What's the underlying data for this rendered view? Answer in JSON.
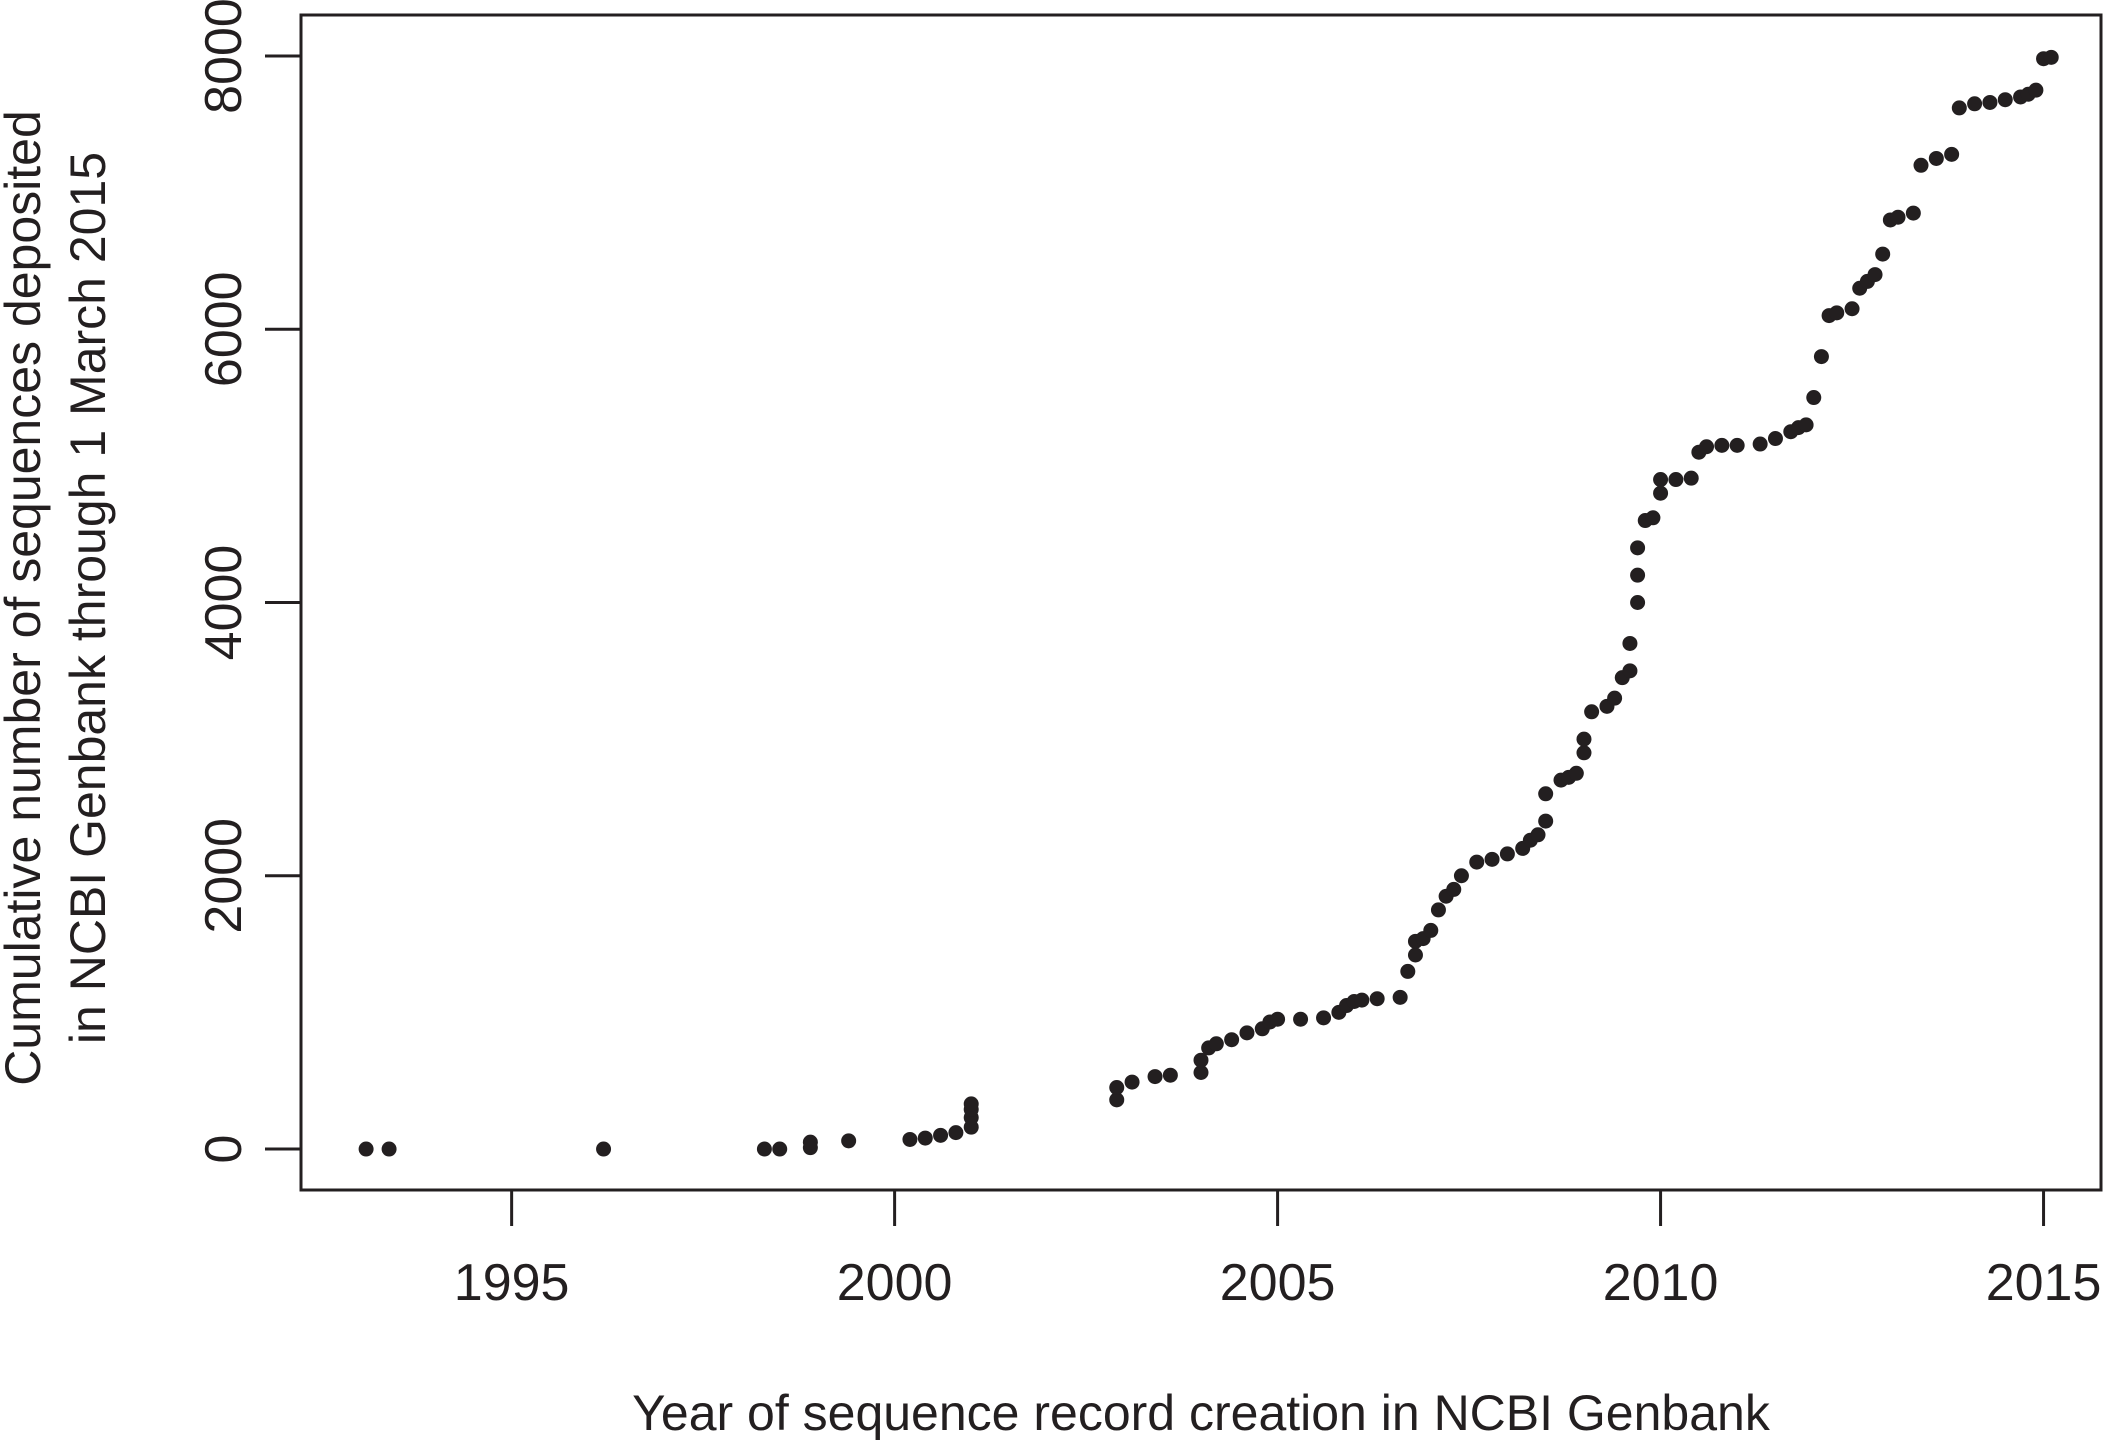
{
  "chart_data": {
    "type": "scatter",
    "title": "",
    "xlabel": "Year of sequence record creation in NCBI Genbank",
    "ylabel_lines": [
      "Cumulative number of sequences deposited",
      "in NCBI Genbank through 1 March 2015"
    ],
    "xlim": [
      1992.25,
      2015.75
    ],
    "ylim": [
      -300,
      8300
    ],
    "x_ticks": [
      1995,
      2000,
      2005,
      2010,
      2015
    ],
    "x_tick_labels": [
      "1995",
      "2000",
      "2005",
      "2010",
      "2015"
    ],
    "y_ticks": [
      0,
      2000,
      4000,
      6000,
      8000
    ],
    "y_tick_labels": [
      "0",
      "2000",
      "4000",
      "6000",
      "8000"
    ],
    "grid": false,
    "point_color": "#231f20",
    "series": [
      {
        "x": [
          1993.1,
          1993.4,
          1996.2,
          1998.3,
          1998.5,
          1998.9,
          1998.9,
          1999.4,
          2000.2,
          2000.4,
          2000.6,
          2000.8,
          2001.0,
          2001.0,
          2001.0,
          2001.0,
          2002.9,
          2002.9,
          2003.1,
          2003.4,
          2003.6,
          2004.0,
          2004.0,
          2004.1,
          2004.2,
          2004.4,
          2004.6,
          2004.8,
          2004.9,
          2005.0,
          2005.3,
          2005.6,
          2005.8,
          2005.9,
          2006.0,
          2006.1,
          2006.3,
          2006.6,
          2006.7,
          2006.8,
          2006.8,
          2006.9,
          2007.0,
          2007.1,
          2007.2,
          2007.3,
          2007.4,
          2007.6,
          2007.8,
          2008.0,
          2008.2,
          2008.3,
          2008.4,
          2008.5,
          2008.5,
          2008.7,
          2008.8,
          2008.9,
          2009.0,
          2009.0,
          2009.1,
          2009.3,
          2009.4,
          2009.5,
          2009.6,
          2009.6,
          2009.7,
          2009.7,
          2009.7,
          2009.8,
          2009.9,
          2010.0,
          2010.0,
          2010.2,
          2010.4,
          2010.5,
          2010.6,
          2010.8,
          2011.0,
          2011.3,
          2011.5,
          2011.7,
          2011.8,
          2011.9,
          2012.0,
          2012.1,
          2012.2,
          2012.3,
          2012.5,
          2012.6,
          2012.7,
          2012.8,
          2012.9,
          2013.0,
          2013.1,
          2013.3,
          2013.4,
          2013.6,
          2013.8,
          2013.9,
          2014.1,
          2014.3,
          2014.5,
          2014.7,
          2014.8,
          2014.9,
          2015.0,
          2015.1
        ],
        "y": [
          0,
          0,
          0,
          0,
          0,
          10,
          50,
          60,
          70,
          80,
          100,
          120,
          160,
          230,
          290,
          330,
          360,
          450,
          490,
          530,
          540,
          560,
          650,
          740,
          770,
          800,
          850,
          880,
          930,
          950,
          950,
          960,
          1000,
          1050,
          1080,
          1090,
          1100,
          1110,
          1300,
          1420,
          1520,
          1540,
          1600,
          1750,
          1850,
          1900,
          2000,
          2100,
          2120,
          2160,
          2200,
          2260,
          2300,
          2400,
          2600,
          2700,
          2720,
          2750,
          2900,
          3000,
          3200,
          3240,
          3300,
          3450,
          3500,
          3700,
          4000,
          4200,
          4400,
          4600,
          4620,
          4800,
          4900,
          4900,
          4910,
          5100,
          5140,
          5150,
          5150,
          5160,
          5200,
          5250,
          5280,
          5300,
          5500,
          5800,
          6100,
          6120,
          6150,
          6300,
          6350,
          6400,
          6550,
          6800,
          6820,
          6850,
          7200,
          7250,
          7280,
          7620,
          7650,
          7660,
          7680,
          7700,
          7720,
          7750,
          7980,
          7990
        ]
      }
    ]
  }
}
